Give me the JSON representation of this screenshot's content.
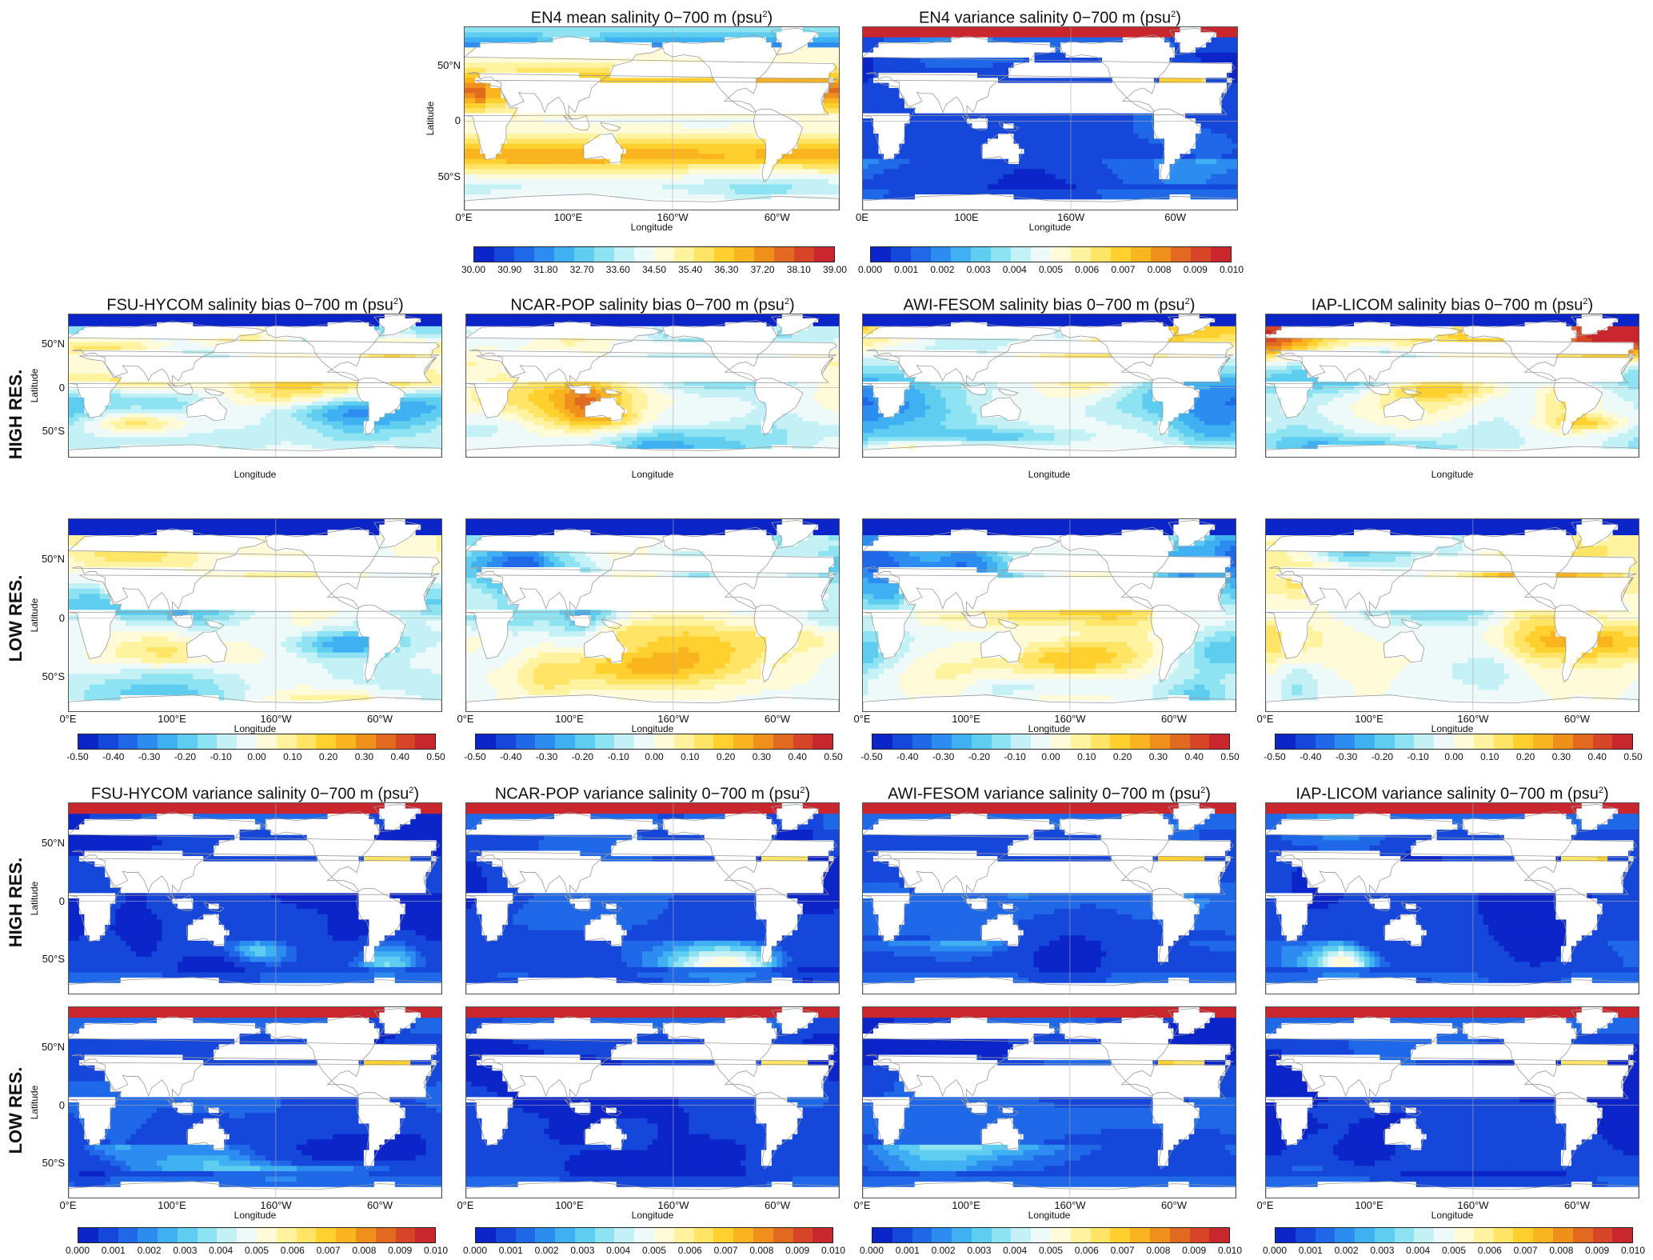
{
  "ramps": {
    "mean": [
      "#0b25c9",
      "#1547da",
      "#1f68e8",
      "#2d8cf0",
      "#3fb0f2",
      "#5ecdf0",
      "#8ee3f2",
      "#c4f1f5",
      "#eefaf9",
      "#fffbd8",
      "#fff3a0",
      "#ffe466",
      "#ffd02e",
      "#f9b41f",
      "#ef8f1c",
      "#e26a20",
      "#d64527",
      "#c9262e"
    ],
    "bias": [
      "#0b25c9",
      "#1547da",
      "#1f68e8",
      "#2d8cf0",
      "#3fb0f2",
      "#5ecdf0",
      "#8ee3f2",
      "#c4f1f5",
      "#eefaf9",
      "#fffbd8",
      "#fff3a0",
      "#ffe466",
      "#ffd02e",
      "#f9b41f",
      "#ef8f1c",
      "#e26a20",
      "#d64527",
      "#c9262e"
    ],
    "var": [
      "#0b25c9",
      "#1547da",
      "#1f68e8",
      "#2d8cf0",
      "#3fb0f2",
      "#5ecdf0",
      "#8ee3f2",
      "#c4f1f5",
      "#eefaf9",
      "#fffbd8",
      "#fff3a0",
      "#ffe466",
      "#ffd02e",
      "#f9b41f",
      "#ef8f1c",
      "#e26a20",
      "#d64527",
      "#c9262e"
    ]
  },
  "colorbars": {
    "mean": [
      "30.00",
      "30.90",
      "31.80",
      "32.70",
      "33.60",
      "34.50",
      "35.40",
      "36.30",
      "37.20",
      "38.10",
      "39.00"
    ],
    "bias": [
      "-0.50",
      "-0.40",
      "-0.30",
      "-0.20",
      "-0.10",
      "0.00",
      "0.10",
      "0.20",
      "0.30",
      "0.40",
      "0.50"
    ],
    "var": [
      "0.000",
      "0.001",
      "0.002",
      "0.003",
      "0.004",
      "0.005",
      "0.006",
      "0.007",
      "0.008",
      "0.009",
      "0.010"
    ]
  },
  "axes": {
    "latitude_label": "Latitude",
    "longitude_label": "Longitude",
    "lat_ticks": [
      "50°N",
      "0",
      "50°S"
    ],
    "lon_ticks_deg": [
      "0°E",
      "100°E",
      "160°W",
      "60°W"
    ],
    "lon_ticks_plain": [
      "0E",
      "100E",
      "160W",
      "60W"
    ]
  },
  "row_labels": {
    "high": "HIGH RES.",
    "low": "LOW RES."
  },
  "panels": {
    "en4_mean": {
      "title": "EN4 mean salinity 0−700 m (psu",
      "sup": "2",
      "tail": ")"
    },
    "en4_var": {
      "title": "EN4 variance salinity 0−700 m (psu",
      "sup": "2",
      "tail": ")"
    },
    "bias": [
      {
        "title": "FSU-HYCOM  salinity bias 0−700 m (psu",
        "sup": "2",
        "tail": ")"
      },
      {
        "title": "NCAR-POP  salinity bias 0−700 m (psu",
        "sup": "2",
        "tail": ")"
      },
      {
        "title": "AWI-FESOM  salinity bias 0−700 m (psu",
        "sup": "2",
        "tail": ")"
      },
      {
        "title": "IAP-LICOM salinity bias 0−700 m (psu",
        "sup": "2",
        "tail": ")"
      }
    ],
    "variance": [
      {
        "title": "FSU-HYCOM  variance salinity 0−700 m (psu",
        "sup": "2",
        "tail": ")"
      },
      {
        "title": "NCAR-POP  variance salinity 0−700 m (psu",
        "sup": "2",
        "tail": ")"
      },
      {
        "title": "AWI-FESOM  variance salinity 0−700 m (psu",
        "sup": "2",
        "tail": ")"
      },
      {
        "title": "IAP-LICOM variance salinity 0−700 m (psu",
        "sup": "2",
        "tail": ")"
      }
    ]
  },
  "colors": {
    "land": "#ffffff",
    "coast": "#9a9a9a",
    "grid": "#aaaaaa"
  }
}
